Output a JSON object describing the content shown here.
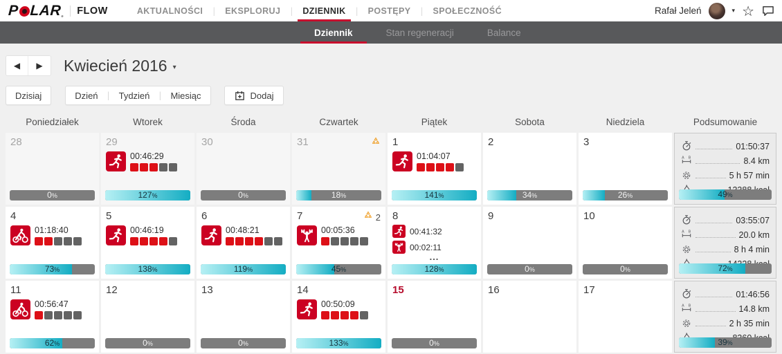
{
  "brand": {
    "logo_p": "P",
    "logo_lar": "LAR",
    "flow": "FLOW"
  },
  "icons": {
    "prev": "◀",
    "next": "▾",
    "prev_arrow": "◀",
    "next_arrow": "▶",
    "caret": "▾",
    "star": "☆"
  },
  "top_nav": {
    "items": [
      {
        "label": "AKTUALNOŚCI",
        "active": false
      },
      {
        "label": "EKSPLORUJ",
        "active": false
      },
      {
        "label": "DZIENNIK",
        "active": true
      },
      {
        "label": "POSTĘPY",
        "active": false
      },
      {
        "label": "SPOŁECZNOŚĆ",
        "active": false
      }
    ],
    "user_name": "Rafał Jeleń"
  },
  "sub_nav": {
    "items": [
      {
        "label": "Dziennik",
        "active": true
      },
      {
        "label": "Stan regeneracji",
        "active": false
      },
      {
        "label": "Balance",
        "active": false
      }
    ]
  },
  "month_bar": {
    "title": "Kwiecień 2016"
  },
  "toolbar": {
    "today_label": "Dzisiaj",
    "view_options": [
      "Dzień",
      "Tydzień",
      "Miesiąc"
    ],
    "add_label": "Dodaj"
  },
  "calendar": {
    "day_headers": [
      "Poniedziałek",
      "Wtorek",
      "Środa",
      "Czwartek",
      "Piątek",
      "Sobota",
      "Niedziela",
      "Podsumowanie"
    ],
    "weeks": [
      {
        "days": [
          {
            "num": "28",
            "outside": true,
            "progress": 0
          },
          {
            "num": "29",
            "outside": true,
            "workouts": [
              {
                "sport": "running",
                "time": "00:46:29",
                "zones_red": 3,
                "zones_gray": 2
              }
            ],
            "progress": 127
          },
          {
            "num": "30",
            "outside": true,
            "progress": 0
          },
          {
            "num": "31",
            "outside": true,
            "alert": {
              "count": ""
            },
            "progress": 18
          },
          {
            "num": "1",
            "workouts": [
              {
                "sport": "running",
                "time": "01:04:07",
                "zones_red": 4,
                "zones_gray": 1
              }
            ],
            "progress": 141
          },
          {
            "num": "2",
            "progress": 34
          },
          {
            "num": "3",
            "progress": 26
          }
        ],
        "summary": {
          "duration": "01:50:37",
          "distance": "8.4 km",
          "active_time": "5 h 57 min",
          "calories": "13388 kcal",
          "progress": 49
        }
      },
      {
        "days": [
          {
            "num": "4",
            "workouts": [
              {
                "sport": "cycling",
                "time": "01:18:40",
                "zones_red": 2,
                "zones_gray": 3
              }
            ],
            "progress": 73
          },
          {
            "num": "5",
            "workouts": [
              {
                "sport": "running",
                "time": "00:46:19",
                "zones_red": 4,
                "zones_gray": 1
              }
            ],
            "progress": 138
          },
          {
            "num": "6",
            "workouts": [
              {
                "sport": "running",
                "time": "00:48:21",
                "zones_red": 4,
                "zones_gray": 2
              }
            ],
            "progress": 119
          },
          {
            "num": "7",
            "alert": {
              "count": "2"
            },
            "workouts": [
              {
                "sport": "strength",
                "time": "00:05:36",
                "zones_red": 1,
                "zones_gray": 4
              }
            ],
            "progress": 45
          },
          {
            "num": "8",
            "compact": true,
            "workouts": [
              {
                "sport": "running",
                "time": "00:41:32"
              },
              {
                "sport": "strength",
                "time": "00:02:11"
              }
            ],
            "more": "...",
            "progress": 128
          },
          {
            "num": "9",
            "progress": 0
          },
          {
            "num": "10",
            "progress": 0
          }
        ],
        "summary": {
          "duration": "03:55:07",
          "distance": "20.0 km",
          "active_time": "8 h 4 min",
          "calories": "14328 kcal",
          "progress": 72
        }
      },
      {
        "days": [
          {
            "num": "11",
            "workouts": [
              {
                "sport": "cycling",
                "time": "00:56:47",
                "zones_red": 1,
                "zones_gray": 4
              }
            ],
            "progress": 62
          },
          {
            "num": "12",
            "progress": 0
          },
          {
            "num": "13",
            "progress": 0
          },
          {
            "num": "14",
            "workouts": [
              {
                "sport": "running",
                "time": "00:50:09",
                "zones_red": 4,
                "zones_gray": 1
              }
            ],
            "progress": 133
          },
          {
            "num": "15",
            "today": true,
            "progress": 0
          },
          {
            "num": "16",
            "progress": null
          },
          {
            "num": "17",
            "progress": null
          }
        ],
        "summary": {
          "duration": "01:46:56",
          "distance": "14.8 km",
          "active_time": "2 h 35 min",
          "calories": "8360 kcal",
          "progress": 39
        }
      }
    ]
  },
  "colors": {
    "accent_red": "#c8102e",
    "sport_icon_red": "#cb0122",
    "zone_red": "#dd1017",
    "zone_gray": "#636363",
    "bar_gray": "#7d7d7d",
    "bar_cyan_light": "#b6f0f4",
    "bar_cyan_dark": "#14adc3",
    "badge_orange": "#f0a22e",
    "subnav_gray": "#58595b"
  }
}
